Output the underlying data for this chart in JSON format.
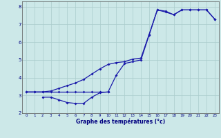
{
  "xlabel": "Graphe des températures (°c)",
  "background_color": "#cce8e8",
  "grid_color": "#aacccc",
  "line_color": "#1a1aaa",
  "xlim": [
    -0.5,
    23.5
  ],
  "ylim": [
    2,
    8.3
  ],
  "xticks": [
    0,
    1,
    2,
    3,
    4,
    5,
    6,
    7,
    8,
    9,
    10,
    11,
    12,
    13,
    14,
    15,
    16,
    17,
    18,
    19,
    20,
    21,
    22,
    23
  ],
  "yticks": [
    2,
    3,
    4,
    5,
    6,
    7,
    8
  ],
  "line1_x": [
    0,
    1,
    2,
    3,
    4,
    5,
    6,
    7,
    8,
    9,
    10
  ],
  "line1_y": [
    3.2,
    3.2,
    3.2,
    3.2,
    3.2,
    3.2,
    3.2,
    3.2,
    3.2,
    3.2,
    3.2
  ],
  "line2_x": [
    2,
    3,
    4,
    5,
    6,
    7,
    8,
    9,
    10,
    11,
    12,
    13,
    14,
    15,
    16,
    17,
    18,
    19,
    20,
    21,
    22,
    23
  ],
  "line2_y": [
    2.9,
    2.9,
    2.75,
    2.6,
    2.55,
    2.55,
    2.9,
    3.15,
    3.2,
    4.15,
    4.8,
    4.9,
    5.0,
    6.4,
    7.82,
    7.7,
    7.55,
    7.82,
    7.82,
    7.82,
    7.82,
    7.3
  ],
  "line3_x": [
    0,
    1,
    2,
    3,
    4,
    5,
    6,
    7,
    8,
    9,
    10,
    11,
    12,
    13,
    14,
    15,
    16,
    17,
    18,
    19,
    20,
    21,
    22,
    23
  ],
  "line3_y": [
    3.2,
    3.2,
    3.2,
    3.25,
    3.4,
    3.55,
    3.7,
    3.9,
    4.2,
    4.5,
    4.75,
    4.85,
    4.9,
    5.05,
    5.1,
    6.45,
    7.82,
    7.75,
    7.55,
    7.82,
    7.82,
    7.82,
    7.82,
    7.3
  ]
}
